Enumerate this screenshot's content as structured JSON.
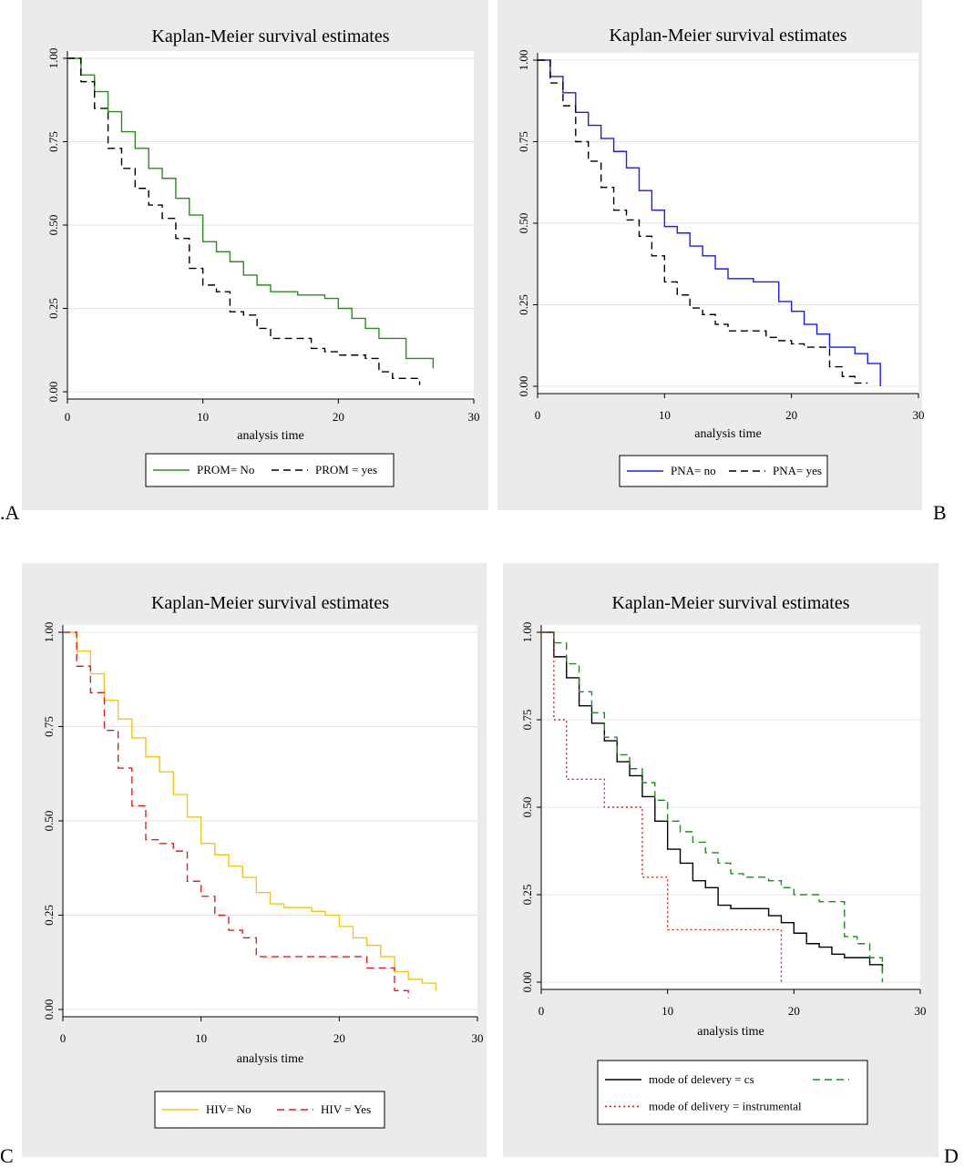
{
  "panels": [
    {
      "letter": ".A",
      "chart_data": {
        "type": "line",
        "title": "Kaplan-Meier survival estimates",
        "xlabel": "analysis time",
        "ylabel": "",
        "xlim": [
          0,
          30
        ],
        "ylim": [
          0,
          1
        ],
        "x_ticks": [
          "0",
          "10",
          "20",
          "30"
        ],
        "y_ticks": [
          "0.00",
          "0.25",
          "0.50",
          "0.75",
          "1.00"
        ],
        "grid": true,
        "legend_position": "bottom",
        "series": [
          {
            "name": "PROM= No",
            "color": "#2e8b22",
            "dash": "solid",
            "x": [
              0,
              1,
              2,
              3,
              4,
              5,
              6,
              7,
              8,
              9,
              10,
              11,
              12,
              13,
              14,
              15,
              16,
              17,
              18,
              19,
              20,
              21,
              22,
              23,
              25,
              27
            ],
            "y": [
              1.0,
              0.95,
              0.9,
              0.84,
              0.78,
              0.73,
              0.67,
              0.64,
              0.58,
              0.53,
              0.45,
              0.42,
              0.39,
              0.35,
              0.32,
              0.3,
              0.3,
              0.29,
              0.29,
              0.28,
              0.25,
              0.22,
              0.19,
              0.16,
              0.1,
              0.07
            ]
          },
          {
            "name": "PROM = yes",
            "color": "#000000",
            "dash": "dashed",
            "x": [
              0,
              1,
              2,
              3,
              4,
              5,
              6,
              7,
              8,
              9,
              10,
              11,
              12,
              13,
              14,
              15,
              16,
              17,
              18,
              19,
              20,
              21,
              22,
              23,
              24,
              25,
              26
            ],
            "y": [
              1.0,
              0.93,
              0.85,
              0.73,
              0.67,
              0.61,
              0.56,
              0.52,
              0.46,
              0.37,
              0.32,
              0.3,
              0.24,
              0.23,
              0.19,
              0.16,
              0.16,
              0.16,
              0.13,
              0.12,
              0.11,
              0.11,
              0.1,
              0.06,
              0.04,
              0.04,
              0.02
            ]
          }
        ]
      }
    },
    {
      "letter": "B",
      "chart_data": {
        "type": "line",
        "title": "Kaplan-Meier survival estimates",
        "xlabel": "analysis time",
        "ylabel": "",
        "xlim": [
          0,
          30
        ],
        "ylim": [
          0,
          1
        ],
        "x_ticks": [
          "0",
          "10",
          "20",
          "30"
        ],
        "y_ticks": [
          "0.00",
          "0.25",
          "0.50",
          "0.75",
          "1.00"
        ],
        "grid": true,
        "legend_position": "bottom",
        "series": [
          {
            "name": "PNA= no",
            "color": "#1a1aff",
            "dash": "solid",
            "x": [
              0,
              1,
              2,
              3,
              4,
              5,
              6,
              7,
              8,
              9,
              10,
              11,
              12,
              13,
              14,
              15,
              16,
              17,
              18,
              19,
              20,
              21,
              22,
              23,
              25,
              26,
              27
            ],
            "y": [
              1.0,
              0.95,
              0.9,
              0.84,
              0.8,
              0.76,
              0.72,
              0.67,
              0.6,
              0.54,
              0.49,
              0.47,
              0.43,
              0.4,
              0.36,
              0.33,
              0.33,
              0.32,
              0.32,
              0.26,
              0.23,
              0.19,
              0.16,
              0.12,
              0.1,
              0.07,
              0.0
            ]
          },
          {
            "name": "PNA= yes",
            "color": "#000000",
            "dash": "dashed",
            "x": [
              0,
              1,
              2,
              3,
              4,
              5,
              6,
              7,
              8,
              9,
              10,
              11,
              12,
              13,
              14,
              15,
              16,
              17,
              18,
              19,
              20,
              21,
              22,
              23,
              24,
              25,
              26
            ],
            "y": [
              1.0,
              0.93,
              0.86,
              0.75,
              0.69,
              0.61,
              0.54,
              0.51,
              0.46,
              0.4,
              0.32,
              0.28,
              0.24,
              0.22,
              0.19,
              0.17,
              0.17,
              0.17,
              0.15,
              0.14,
              0.13,
              0.12,
              0.12,
              0.06,
              0.03,
              0.01,
              0.01
            ]
          }
        ]
      }
    },
    {
      "letter": "C",
      "chart_data": {
        "type": "line",
        "title": "Kaplan-Meier survival estimates",
        "xlabel": "analysis time",
        "ylabel": "",
        "xlim": [
          0,
          30
        ],
        "ylim": [
          0,
          1
        ],
        "x_ticks": [
          "0",
          "10",
          "20",
          "30"
        ],
        "y_ticks": [
          "0.00",
          "0.25",
          "0.50",
          "0.75",
          "1.00"
        ],
        "grid": true,
        "legend_position": "bottom",
        "series": [
          {
            "name": "HIV= No",
            "color": "#f5c518",
            "dash": "solid",
            "x": [
              0,
              1,
              2,
              3,
              4,
              5,
              6,
              7,
              8,
              9,
              10,
              11,
              12,
              13,
              14,
              15,
              16,
              17,
              18,
              19,
              20,
              21,
              22,
              23,
              24,
              25,
              26,
              27
            ],
            "y": [
              1.0,
              0.95,
              0.89,
              0.82,
              0.77,
              0.72,
              0.67,
              0.63,
              0.57,
              0.51,
              0.44,
              0.41,
              0.38,
              0.35,
              0.31,
              0.28,
              0.27,
              0.27,
              0.26,
              0.25,
              0.22,
              0.19,
              0.17,
              0.14,
              0.1,
              0.08,
              0.07,
              0.05
            ]
          },
          {
            "name": "HIV = Yes",
            "color": "#e02020",
            "dash": "dashed",
            "x": [
              0,
              1,
              2,
              3,
              4,
              5,
              6,
              7,
              8,
              9,
              10,
              11,
              12,
              13,
              14,
              15,
              16,
              17,
              18,
              19,
              20,
              21,
              22,
              23,
              24,
              25
            ],
            "y": [
              1.0,
              0.91,
              0.84,
              0.74,
              0.64,
              0.54,
              0.45,
              0.44,
              0.42,
              0.34,
              0.3,
              0.25,
              0.21,
              0.19,
              0.14,
              0.14,
              0.14,
              0.14,
              0.14,
              0.14,
              0.14,
              0.14,
              0.11,
              0.11,
              0.05,
              0.03
            ]
          }
        ]
      }
    },
    {
      "letter": "D",
      "chart_data": {
        "type": "line",
        "title": "Kaplan-Meier survival estimates",
        "xlabel": "analysis time",
        "ylabel": "",
        "xlim": [
          0,
          30
        ],
        "ylim": [
          0,
          1
        ],
        "x_ticks": [
          "0",
          "10",
          "20",
          "30"
        ],
        "y_ticks": [
          "0.00",
          "0.25",
          "0.50",
          "0.75",
          "1.00"
        ],
        "grid": true,
        "legend_position": "bottom",
        "series": [
          {
            "name": "mode of delevery = cs",
            "color": "#000000",
            "dash": "solid",
            "x": [
              0,
              1,
              2,
              3,
              4,
              5,
              6,
              7,
              8,
              9,
              10,
              11,
              12,
              13,
              14,
              15,
              16,
              17,
              18,
              19,
              20,
              21,
              22,
              23,
              24,
              25,
              26,
              27
            ],
            "y": [
              1.0,
              0.93,
              0.87,
              0.79,
              0.74,
              0.69,
              0.63,
              0.59,
              0.53,
              0.46,
              0.38,
              0.34,
              0.29,
              0.27,
              0.22,
              0.21,
              0.21,
              0.21,
              0.19,
              0.17,
              0.14,
              0.11,
              0.1,
              0.08,
              0.07,
              0.07,
              0.05,
              0.03
            ]
          },
          {
            "name": "",
            "color": "#1e8b1e",
            "dash": "dashed",
            "x": [
              0,
              1,
              2,
              3,
              4,
              5,
              6,
              7,
              8,
              9,
              10,
              11,
              12,
              13,
              14,
              15,
              16,
              17,
              18,
              19,
              20,
              21,
              22,
              23,
              24,
              25,
              26,
              27
            ],
            "y": [
              1.0,
              0.97,
              0.91,
              0.83,
              0.77,
              0.7,
              0.65,
              0.61,
              0.57,
              0.52,
              0.46,
              0.43,
              0.4,
              0.37,
              0.34,
              0.31,
              0.3,
              0.3,
              0.29,
              0.27,
              0.25,
              0.25,
              0.23,
              0.23,
              0.13,
              0.11,
              0.07,
              0.0
            ]
          },
          {
            "name": "mode  of delivery  = instrumental",
            "color": "#e02020",
            "dash": "dotted",
            "x": [
              0,
              1,
              2,
              5,
              8,
              10,
              19
            ],
            "y": [
              1.0,
              0.75,
              0.58,
              0.5,
              0.3,
              0.15,
              0.0
            ]
          }
        ]
      }
    }
  ]
}
